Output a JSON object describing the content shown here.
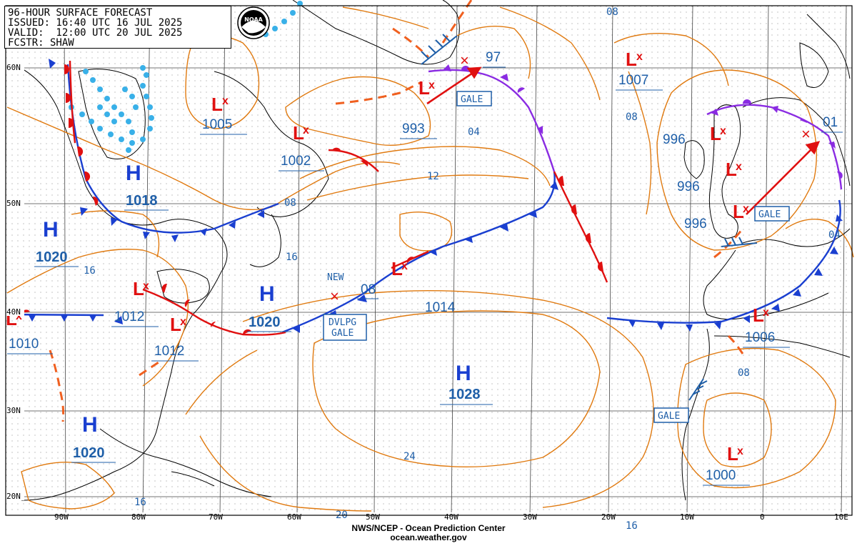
{
  "header": {
    "line1": "96-HOUR SURFACE FORECAST",
    "line2": "ISSUED: 16:40 UTC 16 JUL 2025",
    "line3": "VALID:  12:00 UTC 20 JUL 2025",
    "line4": "FCSTR: SHAW"
  },
  "logo_text": "NOAA",
  "footer": {
    "line1": "NWS/NCEP - Ocean Prediction Center",
    "line2": "ocean.weather.gov"
  },
  "lon_labels": [
    "90W",
    "80W",
    "70W",
    "60W",
    "50W",
    "40W",
    "30W",
    "20W",
    "10W",
    "0",
    "10E"
  ],
  "lat_labels": [
    "60N",
    "50N",
    "40N",
    "30N",
    "20N"
  ],
  "highs": [
    {
      "letter": "H",
      "value": "1018"
    },
    {
      "letter": "H",
      "value": "1020"
    },
    {
      "letter": "H",
      "value": "1020"
    },
    {
      "letter": "H",
      "value": "1020"
    },
    {
      "letter": "H",
      "value": "1028"
    }
  ],
  "lows": [
    {
      "value": "1005"
    },
    {
      "value": "1002"
    },
    {
      "value": "993"
    },
    {
      "value": "1007"
    },
    {
      "value": "996"
    },
    {
      "value": "996"
    },
    {
      "value": "996"
    },
    {
      "value": "1012"
    },
    {
      "value": "1012"
    },
    {
      "value": "1010"
    },
    {
      "value": "1006"
    },
    {
      "value": "1000"
    },
    {
      "value": "08"
    },
    {
      "value": "97"
    },
    {
      "value": "01"
    }
  ],
  "isobar_labels": [
    "08",
    "04",
    "12",
    "08",
    "08",
    "16",
    "16",
    "14",
    "04",
    "08",
    "24",
    "20",
    "16",
    "16",
    "1014"
  ],
  "warnings": [
    "GALE",
    "GALE",
    "DVLPG",
    "GALE",
    "GALE"
  ],
  "new_label": "NEW",
  "colors": {
    "high": "#1a3fd0",
    "low": "#e01010",
    "isobar": "#e07a10",
    "ice": "#39b0e8",
    "occluded": "#8a2be2",
    "label": "#1f5fa8",
    "coast": "#000000",
    "grid": "#555555"
  }
}
